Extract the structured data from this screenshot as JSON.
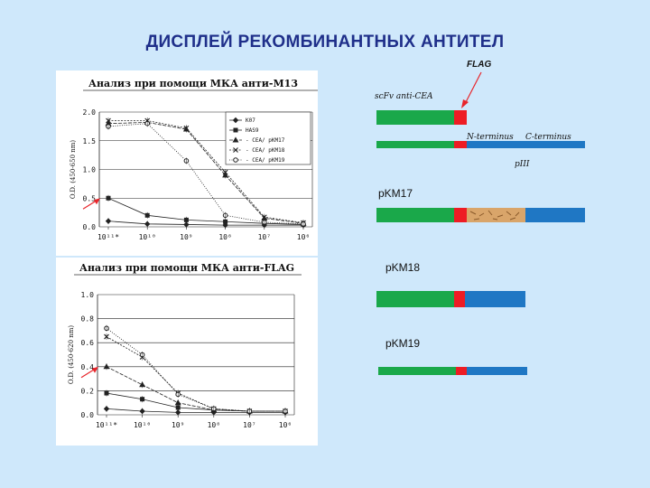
{
  "slide_title": "ДИСПЛЕЙ РЕКОМБИНАНТНЫХ АНТИТЕЛ",
  "colors": {
    "title": "#1f2f8a",
    "background": "#cfe8fb",
    "green": "#1aa84a",
    "red": "#ee1c24",
    "blue": "#1f77c4",
    "stripe": "#d9a56a",
    "arrow": "#e8252b"
  },
  "chart_data": [
    {
      "type": "line",
      "title": "Анализ при помощи МКА анти-М13",
      "ylabel": "O.D. (450-650 nm)",
      "x_tick_labels": [
        "10¹¹*",
        "10¹⁰",
        "10⁹",
        "10⁸",
        "10⁷",
        "10⁶"
      ],
      "y_tick_labels": [
        "0.0",
        "0.5",
        "1.0",
        "1.5",
        "2.0"
      ],
      "ylim": [
        0,
        2.0
      ],
      "y_ticks": [
        0,
        0.5,
        1.0,
        1.5,
        2.0
      ],
      "grid": true,
      "legend": "top-right",
      "series": [
        {
          "name": "K07",
          "marker": "diamond",
          "values": [
            0.1,
            0.05,
            0.04,
            0.03,
            0.03,
            0.03
          ]
        },
        {
          "name": "HAS9",
          "marker": "square",
          "values": [
            0.5,
            0.2,
            0.12,
            0.09,
            0.06,
            0.04
          ]
        },
        {
          "name": "- CEA/ pKM17",
          "marker": "triangle",
          "values": [
            1.8,
            1.82,
            1.7,
            0.9,
            0.15,
            0.06
          ]
        },
        {
          "name": "- CEA/ pKM18",
          "marker": "cross",
          "values": [
            1.85,
            1.85,
            1.72,
            0.95,
            0.17,
            0.07
          ]
        },
        {
          "name": "- CEA/ pKM19",
          "marker": "circle",
          "values": [
            1.75,
            1.8,
            1.15,
            0.2,
            0.08,
            0.05
          ]
        }
      ]
    },
    {
      "type": "line",
      "title": "Анализ при помощи МКА анти-FLAG",
      "ylabel": "O.D. (450-620 nm)",
      "x_tick_labels": [
        "10¹¹*",
        "10¹⁰",
        "10⁹",
        "10⁸",
        "10⁷",
        "10⁶"
      ],
      "y_tick_labels": [
        "0.0",
        "0.2",
        "0.4",
        "0.6",
        "0.8",
        "1.0"
      ],
      "ylim": [
        0,
        1.0
      ],
      "y_ticks": [
        0,
        0.2,
        0.4,
        0.6,
        0.8,
        1.0
      ],
      "grid": true,
      "series": [
        {
          "marker": "diamond",
          "values": [
            0.05,
            0.03,
            0.02,
            0.02,
            0.02,
            0.02
          ]
        },
        {
          "marker": "square",
          "values": [
            0.18,
            0.13,
            0.06,
            0.04,
            0.03,
            0.03
          ]
        },
        {
          "marker": "triangle",
          "values": [
            0.4,
            0.25,
            0.1,
            0.04,
            0.03,
            0.03
          ]
        },
        {
          "marker": "cross",
          "values": [
            0.65,
            0.48,
            0.18,
            0.05,
            0.03,
            0.03
          ]
        },
        {
          "marker": "circle",
          "values": [
            0.72,
            0.5,
            0.17,
            0.05,
            0.03,
            0.03
          ]
        }
      ]
    }
  ],
  "diagram": {
    "flag_label": "FLAG",
    "scfv_label": "scFv anti-CEA",
    "n_terminus": "N-terminus",
    "c_terminus": "C-terminus",
    "piii_label": "pIII",
    "plasmids": [
      {
        "name": "pKM17"
      },
      {
        "name": "pKM18"
      },
      {
        "name": "pKM19"
      }
    ]
  }
}
